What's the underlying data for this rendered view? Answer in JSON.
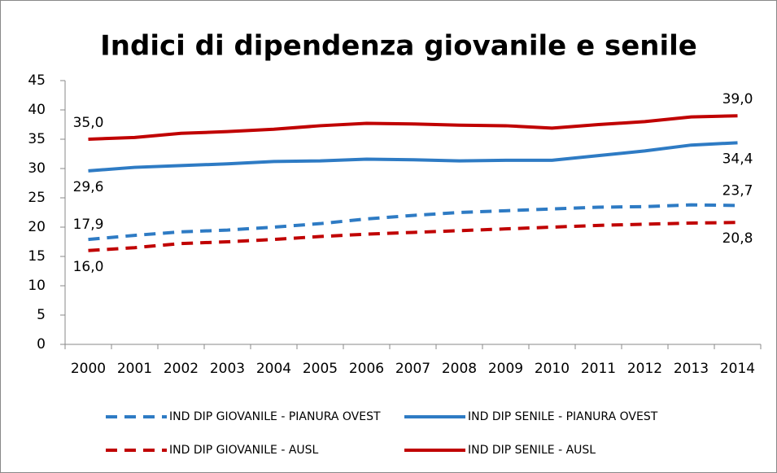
{
  "chart_data": {
    "type": "line",
    "title": "Indici di dipendenza giovanile e senile",
    "categories": [
      "2000",
      "2001",
      "2002",
      "2003",
      "2004",
      "2005",
      "2006",
      "2007",
      "2008",
      "2009",
      "2010",
      "2011",
      "2012",
      "2013",
      "2014"
    ],
    "ylim": [
      0,
      45
    ],
    "yticks": [
      0,
      5,
      10,
      15,
      20,
      25,
      30,
      35,
      40,
      45
    ],
    "series": [
      {
        "name": "IND DIP GIOVANILE - PIANURA OVEST",
        "color": "#2e7bc4",
        "dashed": true,
        "values": [
          17.9,
          18.6,
          19.2,
          19.5,
          20.0,
          20.6,
          21.4,
          22.0,
          22.5,
          22.8,
          23.1,
          23.4,
          23.5,
          23.8,
          23.7
        ],
        "value_labels": [
          "17,9",
          null,
          null,
          null,
          null,
          null,
          null,
          null,
          null,
          null,
          null,
          null,
          null,
          null,
          "23,7"
        ]
      },
      {
        "name": "IND DIP SENILE - PIANURA OVEST",
        "color": "#2e7bc4",
        "dashed": false,
        "values": [
          29.6,
          30.2,
          30.5,
          30.8,
          31.2,
          31.3,
          31.6,
          31.5,
          31.3,
          31.4,
          31.4,
          32.2,
          33.0,
          34.0,
          34.4
        ],
        "value_labels": [
          "29,6",
          null,
          null,
          null,
          null,
          null,
          null,
          null,
          null,
          null,
          null,
          null,
          null,
          null,
          "34,4"
        ]
      },
      {
        "name": "IND DIP GIOVANILE - AUSL",
        "color": "#c00000",
        "dashed": true,
        "values": [
          16.0,
          16.5,
          17.2,
          17.5,
          17.9,
          18.4,
          18.8,
          19.1,
          19.4,
          19.7,
          20.0,
          20.3,
          20.5,
          20.7,
          20.8
        ],
        "value_labels": [
          "16,0",
          null,
          null,
          null,
          null,
          null,
          null,
          null,
          null,
          null,
          null,
          null,
          null,
          null,
          "20,8"
        ]
      },
      {
        "name": "IND DIP SENILE - AUSL",
        "color": "#c00000",
        "dashed": false,
        "values": [
          35.0,
          35.3,
          36.0,
          36.3,
          36.7,
          37.3,
          37.7,
          37.6,
          37.4,
          37.3,
          36.9,
          37.5,
          38.0,
          38.8,
          39.0
        ],
        "value_labels": [
          "35,0",
          null,
          null,
          null,
          null,
          null,
          null,
          null,
          null,
          null,
          null,
          null,
          null,
          null,
          "39,0"
        ]
      }
    ]
  }
}
